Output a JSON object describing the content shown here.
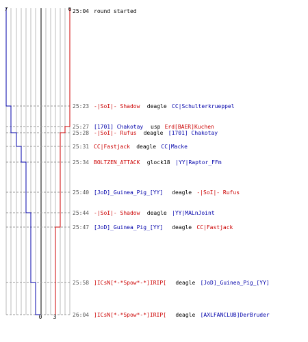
{
  "colors": {
    "blue": "#0000aa",
    "red": "#cc0000",
    "black": "#000000",
    "gray": "#555555",
    "grid": "#bbbbbb",
    "center": "#555555",
    "dashed": "#999999"
  },
  "header": {
    "left_count": "7",
    "right_count": "6",
    "start_time": "25:04",
    "start_text": "round started"
  },
  "footer": {
    "left_count": "0",
    "right_count": "3"
  },
  "events": [
    {
      "time": "25:23",
      "killer": "-|SoI|- Shadow",
      "killer_color": "red",
      "weapon": "deagle",
      "victim": "CC|Schulterkrueppel",
      "victim_color": "blue"
    },
    {
      "time": "25:27",
      "killer": "[1701] Chakotay",
      "killer_color": "blue",
      "weapon": "usp",
      "victim": "Erd[BAER]Kuchen",
      "victim_color": "red"
    },
    {
      "time": "25:28",
      "killer": "-|SoI|- Rufus",
      "killer_color": "red",
      "weapon": "deagle",
      "victim": "[1701] Chakotay",
      "victim_color": "blue"
    },
    {
      "time": "25:31",
      "killer": "CC|Fastjack",
      "killer_color": "red",
      "weapon": "deagle",
      "victim": "CC|Macke",
      "victim_color": "blue"
    },
    {
      "time": "25:34",
      "killer": "BOLTZEN_ATTACK",
      "killer_color": "red",
      "weapon": "glock18",
      "victim": "|YY|Raptor_FFm",
      "victim_color": "blue"
    },
    {
      "time": "25:40",
      "killer": "[JoD]_Guinea_Pig_[YY]",
      "killer_color": "blue",
      "weapon": "deagle",
      "victim": "-|SoI|- Rufus",
      "victim_color": "red"
    },
    {
      "time": "25:44",
      "killer": "-|SoI|- Shadow",
      "killer_color": "red",
      "weapon": "deagle",
      "victim": "|YY|MALnJoint",
      "victim_color": "blue"
    },
    {
      "time": "25:47",
      "killer": "[JoD]_Guinea_Pig_[YY]",
      "killer_color": "blue",
      "weapon": "deagle",
      "victim": "CC|Fastjack",
      "victim_color": "red"
    },
    {
      "time": "25:58",
      "killer": "]ICsN[*-*Spow*-*]IRIP[",
      "killer_color": "red",
      "weapon": "deagle",
      "victim": "[JoD]_Guinea_Pig_[YY]",
      "victim_color": "blue"
    },
    {
      "time": "26:04",
      "killer": "]ICsN[*-*Spow*-*]IRIP[",
      "killer_color": "red",
      "weapon": "deagle",
      "victim": "[AXLFANCLUB]DerBruder",
      "victim_color": "blue"
    }
  ]
}
